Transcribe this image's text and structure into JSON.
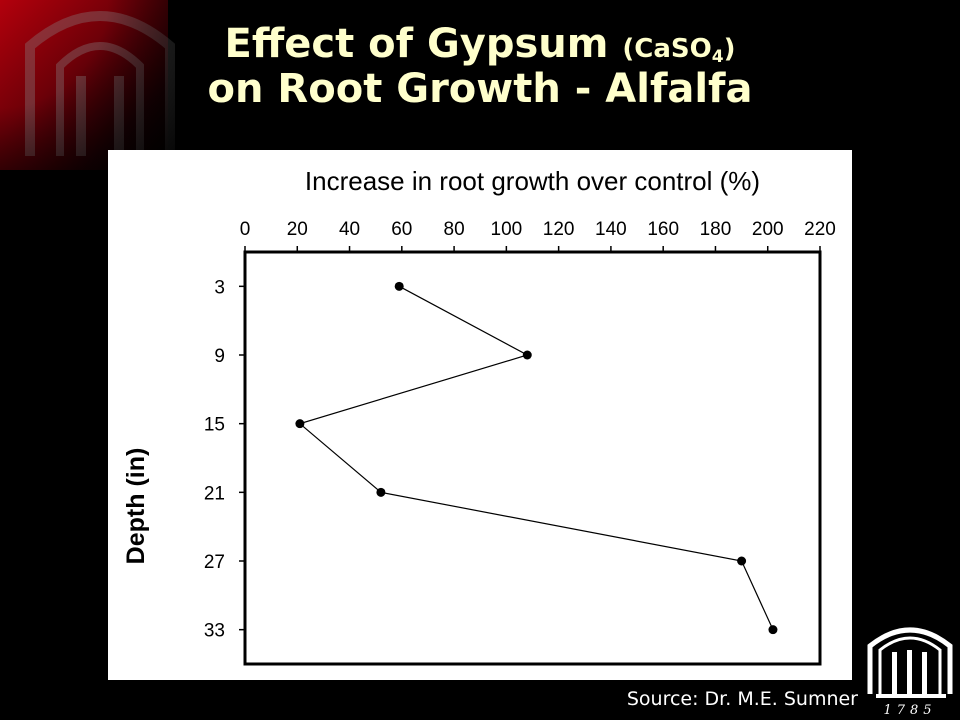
{
  "slide": {
    "title_line1_main": "Effect of Gypsum ",
    "title_line1_paren_open": "(CaSO",
    "title_line1_sub": "4",
    "title_line1_paren_close": ")",
    "title_line2": "on Root Growth - Alfalfa",
    "source": "Source: Dr. M.E. Sumner",
    "logo_year": "1785"
  },
  "chart_data": {
    "type": "line",
    "title": "Increase in root growth over control (%)",
    "xlabel": "Increase in root growth over control (%)",
    "ylabel": "Depth (in)",
    "x_axis_position": "top",
    "y_axis_inverted": true,
    "xlim": [
      0,
      220
    ],
    "x_ticks": [
      0,
      20,
      40,
      60,
      80,
      100,
      120,
      140,
      160,
      180,
      200,
      220
    ],
    "ylim": [
      0,
      36
    ],
    "y_ticks": [
      3,
      9,
      15,
      21,
      27,
      33
    ],
    "grid": false,
    "legend": "none",
    "series": [
      {
        "points": [
          {
            "x": 59,
            "y": 3
          },
          {
            "x": 108,
            "y": 9
          },
          {
            "x": 21,
            "y": 15
          },
          {
            "x": 52,
            "y": 21
          },
          {
            "x": 190,
            "y": 27
          },
          {
            "x": 202,
            "y": 33
          }
        ]
      }
    ],
    "colors": {
      "line": "#000000",
      "marker": "#000000",
      "background": "#ffffff"
    }
  }
}
